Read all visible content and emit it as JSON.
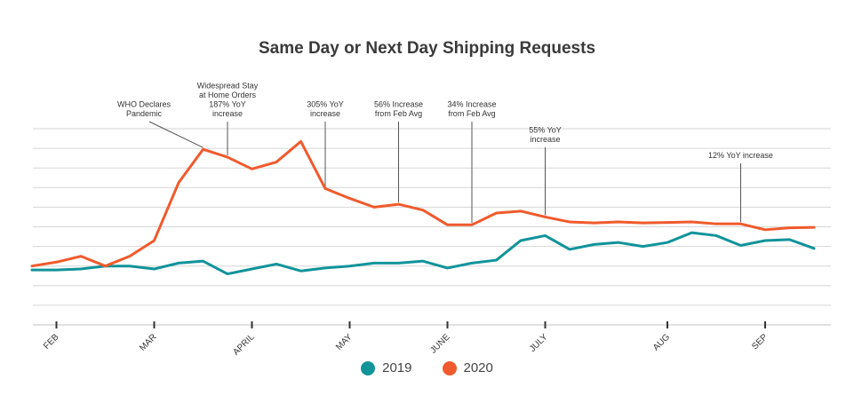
{
  "chart_data": {
    "type": "line",
    "title": "Same Day or Next Day Shipping Requests",
    "xlabel": "",
    "ylabel": "",
    "ylim": [
      0,
      10
    ],
    "grid": true,
    "legend_position": "bottom",
    "month_ticks": [
      {
        "label": "FEB",
        "x": 0
      },
      {
        "label": "MAR",
        "x": 4
      },
      {
        "label": "APRIL",
        "x": 8
      },
      {
        "label": "MAY",
        "x": 12
      },
      {
        "label": "JUNE",
        "x": 16
      },
      {
        "label": "JULY",
        "x": 20
      },
      {
        "label": "AUG",
        "x": 25
      },
      {
        "label": "SEP",
        "x": 29
      }
    ],
    "x": [
      -1,
      0,
      1,
      2,
      3,
      4,
      5,
      6,
      7,
      8,
      9,
      10,
      11,
      12,
      13,
      14,
      15,
      16,
      17,
      18,
      19,
      20,
      21,
      22,
      23,
      24,
      25,
      26,
      27,
      28,
      29,
      30,
      31
    ],
    "series": [
      {
        "name": "2019",
        "color": "#11939a",
        "values": [
          2.8,
          2.8,
          2.85,
          3.0,
          3.0,
          2.85,
          3.15,
          3.25,
          2.6,
          2.85,
          3.1,
          2.75,
          2.9,
          3.0,
          3.15,
          3.15,
          3.25,
          2.9,
          3.15,
          3.3,
          4.3,
          4.55,
          3.85,
          4.1,
          4.2,
          4.0,
          4.2,
          4.7,
          4.55,
          4.05,
          4.3,
          4.35,
          3.9
        ]
      },
      {
        "name": "2020",
        "color": "#f05a2c",
        "values": [
          3.0,
          3.2,
          3.5,
          3.0,
          3.5,
          4.3,
          7.25,
          8.95,
          8.55,
          7.95,
          8.3,
          9.35,
          6.95,
          6.45,
          6.0,
          6.15,
          5.85,
          5.1,
          5.1,
          5.7,
          5.8,
          5.5,
          5.25,
          5.2,
          5.25,
          5.2,
          5.22,
          5.25,
          5.15,
          5.15,
          4.85,
          4.95,
          4.97
        ]
      }
    ],
    "annotations": [
      {
        "lines": [
          "WHO Declares",
          "Pandemic"
        ],
        "x": 6
      },
      {
        "lines": [
          "Widespread Stay",
          "at Home Orders",
          "187% YoY",
          "increase"
        ],
        "x": 7
      },
      {
        "lines": [
          "305% YoY",
          "increase"
        ],
        "x": 11
      },
      {
        "lines": [
          "56% Increase",
          "from Feb Avg"
        ],
        "x": 14
      },
      {
        "lines": [
          "34% Increase",
          "from Feb Avg"
        ],
        "x": 17
      },
      {
        "lines": [
          "55% YoY",
          "increase"
        ],
        "x": 20
      },
      {
        "lines": [
          "12% YoY increase"
        ],
        "x": 28
      }
    ]
  },
  "legend": [
    {
      "label": "2019",
      "color": "#11939a"
    },
    {
      "label": "2020",
      "color": "#f05a2c"
    }
  ]
}
